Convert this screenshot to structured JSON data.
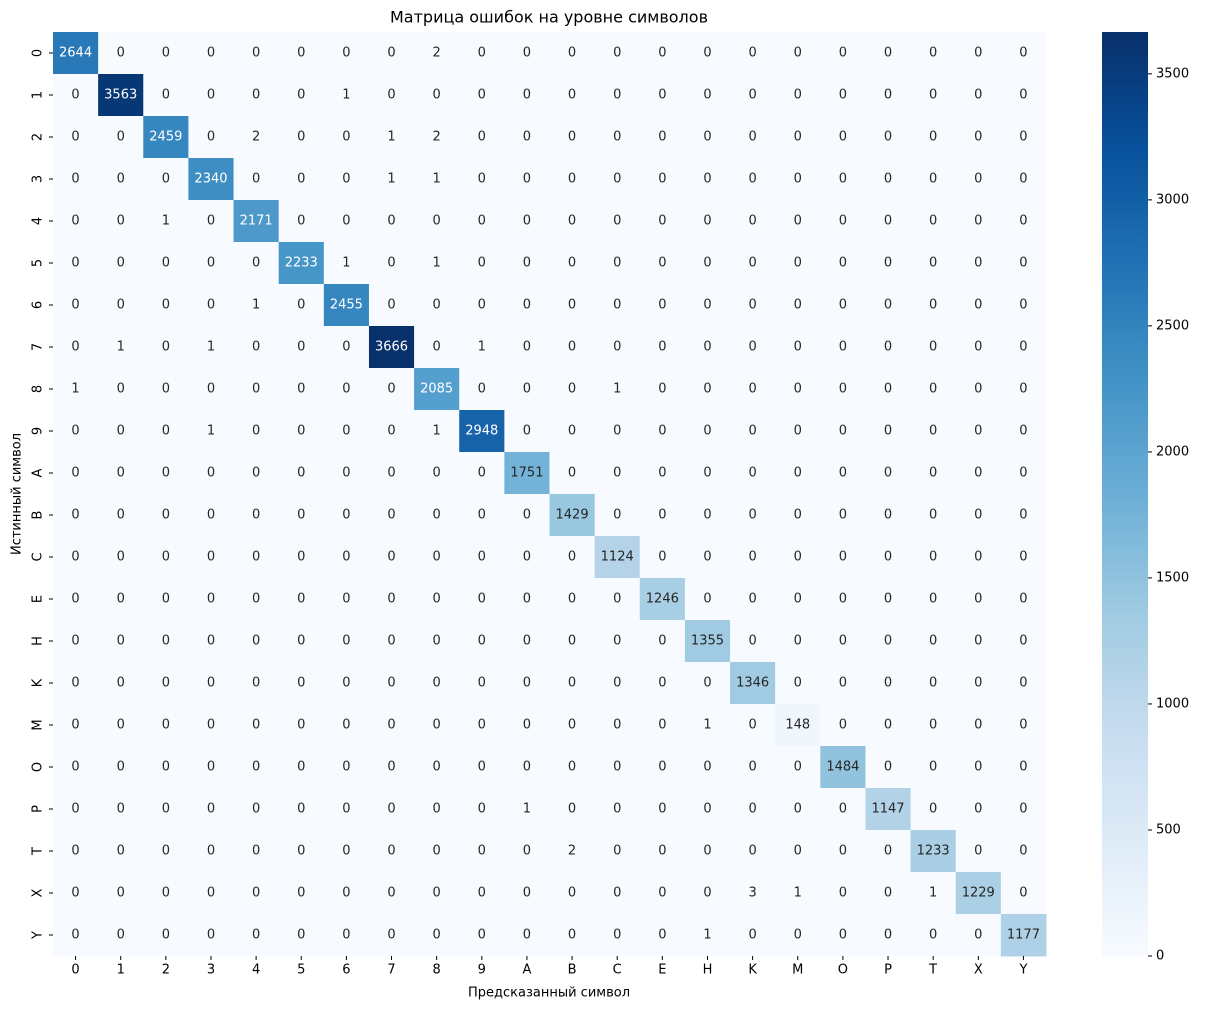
{
  "chart_data": {
    "type": "heatmap",
    "title": "Матрица ошибок на уровне символов",
    "xlabel": "Предсказанный символ",
    "ylabel": "Истинный символ",
    "x_categories": [
      "0",
      "1",
      "2",
      "3",
      "4",
      "5",
      "6",
      "7",
      "8",
      "9",
      "A",
      "B",
      "C",
      "E",
      "H",
      "K",
      "M",
      "O",
      "P",
      "T",
      "X",
      "Y"
    ],
    "y_categories": [
      "0",
      "1",
      "2",
      "3",
      "4",
      "5",
      "6",
      "7",
      "8",
      "9",
      "A",
      "B",
      "C",
      "E",
      "H",
      "K",
      "M",
      "O",
      "P",
      "T",
      "X",
      "Y"
    ],
    "values": [
      [
        2644,
        0,
        0,
        0,
        0,
        0,
        0,
        0,
        2,
        0,
        0,
        0,
        0,
        0,
        0,
        0,
        0,
        0,
        0,
        0,
        0,
        0
      ],
      [
        0,
        3563,
        0,
        0,
        0,
        0,
        1,
        0,
        0,
        0,
        0,
        0,
        0,
        0,
        0,
        0,
        0,
        0,
        0,
        0,
        0,
        0
      ],
      [
        0,
        0,
        2459,
        0,
        2,
        0,
        0,
        1,
        2,
        0,
        0,
        0,
        0,
        0,
        0,
        0,
        0,
        0,
        0,
        0,
        0,
        0
      ],
      [
        0,
        0,
        0,
        2340,
        0,
        0,
        0,
        1,
        1,
        0,
        0,
        0,
        0,
        0,
        0,
        0,
        0,
        0,
        0,
        0,
        0,
        0
      ],
      [
        0,
        0,
        1,
        0,
        2171,
        0,
        0,
        0,
        0,
        0,
        0,
        0,
        0,
        0,
        0,
        0,
        0,
        0,
        0,
        0,
        0,
        0
      ],
      [
        0,
        0,
        0,
        0,
        0,
        2233,
        1,
        0,
        1,
        0,
        0,
        0,
        0,
        0,
        0,
        0,
        0,
        0,
        0,
        0,
        0,
        0
      ],
      [
        0,
        0,
        0,
        0,
        1,
        0,
        2455,
        0,
        0,
        0,
        0,
        0,
        0,
        0,
        0,
        0,
        0,
        0,
        0,
        0,
        0,
        0
      ],
      [
        0,
        1,
        0,
        1,
        0,
        0,
        0,
        3666,
        0,
        1,
        0,
        0,
        0,
        0,
        0,
        0,
        0,
        0,
        0,
        0,
        0,
        0
      ],
      [
        1,
        0,
        0,
        0,
        0,
        0,
        0,
        0,
        2085,
        0,
        0,
        0,
        1,
        0,
        0,
        0,
        0,
        0,
        0,
        0,
        0,
        0
      ],
      [
        0,
        0,
        0,
        1,
        0,
        0,
        0,
        0,
        1,
        2948,
        0,
        0,
        0,
        0,
        0,
        0,
        0,
        0,
        0,
        0,
        0,
        0
      ],
      [
        0,
        0,
        0,
        0,
        0,
        0,
        0,
        0,
        0,
        0,
        1751,
        0,
        0,
        0,
        0,
        0,
        0,
        0,
        0,
        0,
        0,
        0
      ],
      [
        0,
        0,
        0,
        0,
        0,
        0,
        0,
        0,
        0,
        0,
        0,
        1429,
        0,
        0,
        0,
        0,
        0,
        0,
        0,
        0,
        0,
        0
      ],
      [
        0,
        0,
        0,
        0,
        0,
        0,
        0,
        0,
        0,
        0,
        0,
        0,
        1124,
        0,
        0,
        0,
        0,
        0,
        0,
        0,
        0,
        0
      ],
      [
        0,
        0,
        0,
        0,
        0,
        0,
        0,
        0,
        0,
        0,
        0,
        0,
        0,
        1246,
        0,
        0,
        0,
        0,
        0,
        0,
        0,
        0
      ],
      [
        0,
        0,
        0,
        0,
        0,
        0,
        0,
        0,
        0,
        0,
        0,
        0,
        0,
        0,
        1355,
        0,
        0,
        0,
        0,
        0,
        0,
        0
      ],
      [
        0,
        0,
        0,
        0,
        0,
        0,
        0,
        0,
        0,
        0,
        0,
        0,
        0,
        0,
        0,
        1346,
        0,
        0,
        0,
        0,
        0,
        0
      ],
      [
        0,
        0,
        0,
        0,
        0,
        0,
        0,
        0,
        0,
        0,
        0,
        0,
        0,
        0,
        1,
        0,
        148,
        0,
        0,
        0,
        0,
        0
      ],
      [
        0,
        0,
        0,
        0,
        0,
        0,
        0,
        0,
        0,
        0,
        0,
        0,
        0,
        0,
        0,
        0,
        0,
        1484,
        0,
        0,
        0,
        0
      ],
      [
        0,
        0,
        0,
        0,
        0,
        0,
        0,
        0,
        0,
        0,
        1,
        0,
        0,
        0,
        0,
        0,
        0,
        0,
        1147,
        0,
        0,
        0
      ],
      [
        0,
        0,
        0,
        0,
        0,
        0,
        0,
        0,
        0,
        0,
        0,
        2,
        0,
        0,
        0,
        0,
        0,
        0,
        0,
        1233,
        0,
        0
      ],
      [
        0,
        0,
        0,
        0,
        0,
        0,
        0,
        0,
        0,
        0,
        0,
        0,
        0,
        0,
        0,
        3,
        1,
        0,
        0,
        1,
        1229,
        0
      ],
      [
        0,
        0,
        0,
        0,
        0,
        0,
        0,
        0,
        0,
        0,
        0,
        0,
        0,
        0,
        1,
        0,
        0,
        0,
        0,
        0,
        0,
        1177
      ]
    ],
    "colorscale": [
      "#f7fbff",
      "#deebf7",
      "#c6dbef",
      "#9ecae1",
      "#6baed6",
      "#4292c6",
      "#2171b5",
      "#08519c",
      "#08306b"
    ],
    "colorbar_lim": [
      0,
      3666
    ],
    "colorbar_ticks": [
      0,
      500,
      1000,
      1500,
      2000,
      2500,
      3000,
      3500
    ]
  }
}
